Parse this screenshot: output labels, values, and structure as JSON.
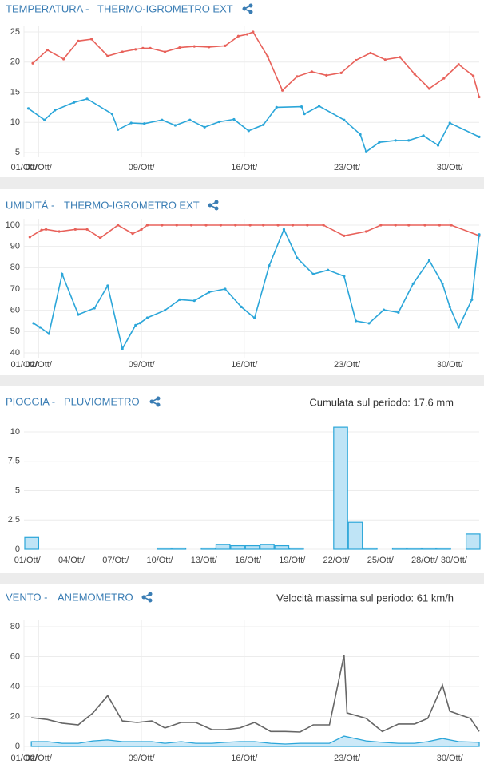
{
  "chart_data": [
    {
      "type": "line",
      "title": "TEMPERATURA -",
      "subtitle": "THERMO-IGROMETRO EXT",
      "xlim": [
        1,
        32
      ],
      "xticks": [
        {
          "value": 1,
          "label": "01/Ott/"
        },
        {
          "value": 2,
          "label": "02/Ott/"
        },
        {
          "value": 9,
          "label": "09/Ott/"
        },
        {
          "value": 16,
          "label": "16/Ott/"
        },
        {
          "value": 23,
          "label": "23/Ott/"
        },
        {
          "value": 30,
          "label": "30/Ott/"
        }
      ],
      "ylim": [
        5,
        25
      ],
      "yticks": [
        5,
        10,
        15,
        20,
        25
      ],
      "grid": true,
      "markers": true,
      "series": [
        {
          "color": "#e8615a",
          "x": [
            1.6,
            2.6,
            3.7,
            4.7,
            5.6,
            6.7,
            7.7,
            8.6,
            9.1,
            9.6,
            10.6,
            11.6,
            12.6,
            13.6,
            14.7,
            15.6,
            16.2,
            16.6,
            17.6,
            18.6,
            19.6,
            20.6,
            21.6,
            22.6,
            23.6,
            24.6,
            25.6,
            26.6,
            27.6,
            28.6,
            29.6,
            30.6,
            31.6,
            32.0
          ],
          "values": [
            19.8,
            22.0,
            20.5,
            23.5,
            23.8,
            21.0,
            21.7,
            22.1,
            22.3,
            22.3,
            21.7,
            22.4,
            22.6,
            22.5,
            22.7,
            24.3,
            24.6,
            25.0,
            20.9,
            15.3,
            17.6,
            18.4,
            17.8,
            18.2,
            20.3,
            21.5,
            20.4,
            20.8,
            18.0,
            15.6,
            17.3,
            19.6,
            17.7,
            14.2
          ]
        },
        {
          "color": "#2ba6d9",
          "x": [
            1.3,
            2.4,
            3.1,
            4.4,
            5.3,
            7.0,
            7.4,
            8.3,
            9.2,
            10.4,
            11.3,
            12.3,
            13.3,
            14.3,
            15.3,
            16.3,
            17.3,
            18.2,
            19.9,
            20.1,
            21.1,
            22.8,
            23.9,
            24.3,
            25.2,
            26.3,
            27.2,
            28.2,
            29.2,
            30.0,
            32.0
          ],
          "values": [
            12.3,
            10.4,
            12.0,
            13.3,
            13.9,
            11.4,
            8.8,
            9.9,
            9.8,
            10.4,
            9.5,
            10.4,
            9.2,
            10.1,
            10.5,
            8.6,
            9.6,
            12.5,
            12.6,
            11.4,
            12.7,
            10.4,
            8.0,
            5.1,
            6.7,
            7.0,
            7.0,
            7.8,
            6.2,
            9.9,
            7.6
          ]
        }
      ]
    },
    {
      "type": "line",
      "title": "UMIDITÀ -",
      "subtitle": "THERMO-IGROMETRO EXT",
      "xlim": [
        1,
        32
      ],
      "xticks": [
        {
          "value": 1,
          "label": "01/Ott/"
        },
        {
          "value": 2,
          "label": "02/Ott/"
        },
        {
          "value": 9,
          "label": "09/Ott/"
        },
        {
          "value": 16,
          "label": "16/Ott/"
        },
        {
          "value": 23,
          "label": "23/Ott/"
        },
        {
          "value": 30,
          "label": "30/Ott/"
        }
      ],
      "ylim": [
        40,
        100
      ],
      "yticks": [
        40,
        50,
        60,
        70,
        80,
        90,
        100
      ],
      "grid": true,
      "markers": true,
      "series": [
        {
          "color": "#e8615a",
          "x": [
            1.4,
            2.2,
            2.5,
            3.4,
            4.5,
            5.3,
            6.2,
            7.4,
            8.4,
            9.0,
            9.4,
            10.4,
            11.4,
            12.4,
            13.4,
            14.4,
            15.4,
            16.4,
            17.3,
            18.3,
            19.3,
            20.3,
            21.4,
            22.8,
            24.3,
            25.3,
            26.3,
            27.2,
            28.3,
            29.3,
            30.1,
            32.0
          ],
          "values": [
            94.4,
            97.7,
            98,
            97,
            98,
            98,
            94,
            100,
            96,
            98,
            100,
            100,
            100,
            100,
            100,
            100,
            100,
            100,
            100,
            100,
            100,
            100,
            100,
            95,
            97,
            100,
            100,
            100,
            100,
            100,
            100,
            95
          ]
        },
        {
          "color": "#2ba6d9",
          "x": [
            1.65,
            2.1,
            2.7,
            3.6,
            4.7,
            5.8,
            6.7,
            7.7,
            8.6,
            8.9,
            9.4,
            10.6,
            11.6,
            12.6,
            13.6,
            14.7,
            15.8,
            16.7,
            17.7,
            18.7,
            19.6,
            20.7,
            21.7,
            22.8,
            23.6,
            24.5,
            25.5,
            26.5,
            27.5,
            28.6,
            29.5,
            30.0,
            30.6,
            31.5,
            32.0
          ],
          "values": [
            53.9,
            52,
            49,
            77,
            58,
            61,
            71.5,
            41.9,
            53,
            54,
            56.5,
            60,
            65,
            64.5,
            68.5,
            70,
            61.6,
            56.4,
            81,
            98,
            84.6,
            77,
            78.9,
            76,
            55,
            53.9,
            60.2,
            59,
            72.5,
            83.4,
            72.5,
            61.6,
            52,
            65,
            95.6
          ]
        }
      ]
    },
    {
      "type": "bar",
      "title": "PIOGGIA -",
      "subtitle": "PLUVIOMETRO",
      "annotation": "Cumulata sul periodo: 17.6 mm",
      "categories": [
        "01/Ott/",
        null,
        null,
        "04/Ott/",
        null,
        null,
        "07/Ott/",
        null,
        null,
        "10/Ott/",
        null,
        null,
        "13/Ott/",
        null,
        null,
        "16/Ott/",
        null,
        null,
        "19/Ott/",
        null,
        null,
        "22/Ott/",
        null,
        null,
        "25/Ott/",
        null,
        null,
        "28/Ott/",
        null,
        "30/Ott/",
        null
      ],
      "values": [
        1.0,
        0,
        0,
        0,
        0,
        0,
        0,
        0,
        0,
        0.1,
        0.1,
        0,
        0.1,
        0.4,
        0.3,
        0.3,
        0.4,
        0.3,
        0.1,
        0,
        0,
        10.4,
        2.3,
        0.1,
        0,
        0.1,
        0.1,
        0.1,
        0.1,
        0,
        1.3
      ],
      "color": "#bfe4f6",
      "edgecolor": "#2ba6d9",
      "ylim": [
        0,
        10
      ],
      "yticks": [
        0,
        2.5,
        5,
        7.5,
        10
      ],
      "grid": true
    },
    {
      "type": "line",
      "title": "VENTO -",
      "subtitle": "ANEMOMETRO",
      "annotation": "Velocità massima sul periodo: 61 km/h",
      "xlim": [
        1,
        32
      ],
      "xticks": [
        {
          "value": 1,
          "label": "01/Ott/"
        },
        {
          "value": 2,
          "label": "02/Ott/"
        },
        {
          "value": 9,
          "label": "09/Ott/"
        },
        {
          "value": 16,
          "label": "16/Ott/"
        },
        {
          "value": 23,
          "label": "23/Ott/"
        },
        {
          "value": 30,
          "label": "30/Ott/"
        }
      ],
      "ylim": [
        0,
        80
      ],
      "yticks": [
        0,
        20,
        40,
        60,
        80
      ],
      "grid": true,
      "markers": false,
      "series": [
        {
          "color": "#666666",
          "x": [
            1.5,
            2.6,
            3.6,
            4.7,
            5.7,
            6.7,
            7.7,
            8.7,
            9.7,
            10.6,
            11.7,
            12.7,
            13.8,
            14.7,
            15.7,
            16.7,
            17.8,
            18.8,
            19.8,
            20.7,
            21.8,
            22.8,
            23.0,
            24.3,
            25.4,
            26.5,
            27.6,
            28.5,
            29.5,
            30.0,
            31.4,
            32.0
          ],
          "values": [
            19.2,
            18,
            15.5,
            14.4,
            22.4,
            34,
            17,
            16,
            17,
            12.3,
            16,
            16,
            11.2,
            11.2,
            12.3,
            16,
            10,
            10,
            9.6,
            14.4,
            14.4,
            61,
            22.4,
            18.7,
            10,
            15,
            15,
            18.7,
            41,
            23.5,
            18.7,
            10
          ]
        },
        {
          "color": "#2ba6d9",
          "area": true,
          "x": [
            1.5,
            2.6,
            3.6,
            4.7,
            5.7,
            6.7,
            7.7,
            8.7,
            9.7,
            10.6,
            11.7,
            12.7,
            13.8,
            14.7,
            15.7,
            16.7,
            17.8,
            18.8,
            19.8,
            20.7,
            21.8,
            22.8,
            24.3,
            25.4,
            26.5,
            27.6,
            28.5,
            29.5,
            30.6,
            32.0
          ],
          "values": [
            3.2,
            3.2,
            2.1,
            2.1,
            3.7,
            4.3,
            3.2,
            3.2,
            3.2,
            2.1,
            3.2,
            2.1,
            2.1,
            2.7,
            3.2,
            3.2,
            2.1,
            1.6,
            2.1,
            2.1,
            2.1,
            6.9,
            3.7,
            2.7,
            2.1,
            2.1,
            3.2,
            5.3,
            3.2,
            2.7
          ]
        }
      ]
    }
  ]
}
